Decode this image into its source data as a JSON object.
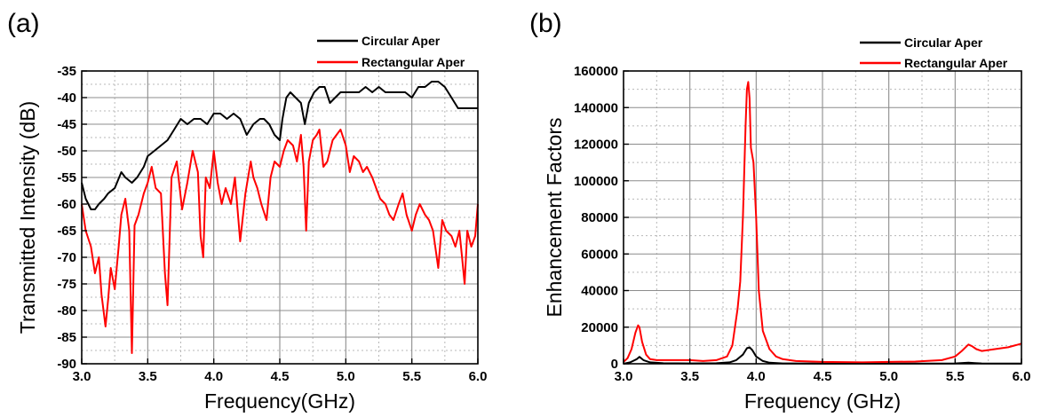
{
  "chart_data": [
    {
      "panel": "(a)",
      "type": "line",
      "xlabel": "Frequency(GHz)",
      "ylabel": "Transmitted Intensity (dB)",
      "xlim": [
        3.0,
        6.0
      ],
      "ylim": [
        -90,
        -35
      ],
      "xticks": [
        "3.0",
        "3.5",
        "4.0",
        "4.5",
        "5.0",
        "5.5",
        "6.0"
      ],
      "yticks": [
        "-35",
        "-40",
        "-45",
        "-50",
        "-55",
        "-60",
        "-65",
        "-70",
        "-75",
        "-80",
        "-85",
        "-90"
      ],
      "grid": true,
      "minor_grid": true,
      "legend_position": "top-right",
      "series": [
        {
          "name": "Circular Aper",
          "color": "#000000",
          "x": [
            3.0,
            3.03,
            3.07,
            3.1,
            3.13,
            3.17,
            3.2,
            3.25,
            3.3,
            3.33,
            3.38,
            3.42,
            3.47,
            3.5,
            3.55,
            3.6,
            3.65,
            3.7,
            3.75,
            3.8,
            3.85,
            3.9,
            3.95,
            4.0,
            4.05,
            4.1,
            4.15,
            4.2,
            4.25,
            4.3,
            4.35,
            4.38,
            4.42,
            4.46,
            4.5,
            4.52,
            4.55,
            4.58,
            4.62,
            4.66,
            4.69,
            4.72,
            4.76,
            4.8,
            4.84,
            4.88,
            4.92,
            4.96,
            5.0,
            5.05,
            5.1,
            5.15,
            5.2,
            5.25,
            5.3,
            5.35,
            5.4,
            5.45,
            5.5,
            5.55,
            5.6,
            5.65,
            5.7,
            5.75,
            5.8,
            5.85,
            5.9,
            5.95,
            6.0
          ],
          "y": [
            -56,
            -59,
            -61,
            -61,
            -60,
            -59,
            -58,
            -57,
            -54,
            -55,
            -56,
            -55,
            -53,
            -51,
            -50,
            -49,
            -48,
            -46,
            -44,
            -45,
            -44,
            -44,
            -45,
            -43,
            -43,
            -44,
            -43,
            -44,
            -47,
            -45,
            -44,
            -44,
            -45,
            -47,
            -48,
            -44,
            -40,
            -39,
            -40,
            -41,
            -45,
            -41,
            -39,
            -38,
            -38,
            -41,
            -40,
            -39,
            -39,
            -39,
            -39,
            -38,
            -39,
            -38,
            -39,
            -39,
            -39,
            -39,
            -40,
            -38,
            -38,
            -37,
            -37,
            -38,
            -40,
            -42,
            -42,
            -42,
            -42
          ]
        },
        {
          "name": "Rectangular Aper",
          "color": "#ff0000",
          "x": [
            3.0,
            3.03,
            3.07,
            3.1,
            3.13,
            3.15,
            3.18,
            3.2,
            3.22,
            3.25,
            3.28,
            3.3,
            3.33,
            3.36,
            3.38,
            3.4,
            3.43,
            3.47,
            3.5,
            3.53,
            3.56,
            3.6,
            3.63,
            3.65,
            3.68,
            3.72,
            3.76,
            3.8,
            3.84,
            3.88,
            3.9,
            3.92,
            3.94,
            3.97,
            4.0,
            4.03,
            4.06,
            4.09,
            4.13,
            4.16,
            4.2,
            4.24,
            4.28,
            4.3,
            4.33,
            4.36,
            4.4,
            4.43,
            4.46,
            4.5,
            4.53,
            4.56,
            4.6,
            4.63,
            4.66,
            4.68,
            4.7,
            4.72,
            4.75,
            4.78,
            4.8,
            4.83,
            4.86,
            4.9,
            4.93,
            4.96,
            5.0,
            5.03,
            5.06,
            5.1,
            5.13,
            5.16,
            5.2,
            5.23,
            5.26,
            5.3,
            5.33,
            5.36,
            5.4,
            5.43,
            5.46,
            5.5,
            5.53,
            5.56,
            5.6,
            5.63,
            5.66,
            5.7,
            5.73,
            5.76,
            5.8,
            5.83,
            5.86,
            5.88,
            5.9,
            5.92,
            5.95,
            5.98,
            6.0
          ],
          "y": [
            -60,
            -65,
            -68,
            -73,
            -70,
            -77,
            -83,
            -78,
            -72,
            -76,
            -68,
            -62,
            -59,
            -65,
            -88,
            -64,
            -62,
            -58,
            -56,
            -53,
            -57,
            -58,
            -73,
            -79,
            -55,
            -52,
            -61,
            -56,
            -50,
            -54,
            -66,
            -70,
            -55,
            -57,
            -50,
            -56,
            -60,
            -57,
            -60,
            -55,
            -67,
            -58,
            -52,
            -55,
            -57,
            -60,
            -63,
            -55,
            -52,
            -53,
            -50,
            -48,
            -49,
            -52,
            -47,
            -53,
            -65,
            -52,
            -48,
            -47,
            -46,
            -53,
            -52,
            -48,
            -47,
            -46,
            -49,
            -54,
            -51,
            -52,
            -54,
            -53,
            -55,
            -57,
            -59,
            -60,
            -62,
            -63,
            -60,
            -58,
            -62,
            -65,
            -62,
            -60,
            -62,
            -63,
            -65,
            -72,
            -63,
            -65,
            -66,
            -68,
            -65,
            -70,
            -75,
            -65,
            -68,
            -66,
            -60
          ]
        }
      ]
    },
    {
      "panel": "(b)",
      "type": "line",
      "xlabel": "Frequency (GHz)",
      "ylabel": "Enhancement Factors",
      "xlim": [
        3.0,
        6.0
      ],
      "ylim": [
        0,
        160000
      ],
      "xticks": [
        "3.0",
        "3.5",
        "4.0",
        "4.5",
        "5.0",
        "5.5",
        "6.0"
      ],
      "yticks": [
        "0",
        "20000",
        "40000",
        "60000",
        "80000",
        "100000",
        "120000",
        "140000",
        "160000"
      ],
      "grid": true,
      "minor_grid": true,
      "legend_position": "top-right",
      "series": [
        {
          "name": "Circular Aper",
          "color": "#000000",
          "x": [
            3.0,
            3.05,
            3.1,
            3.12,
            3.15,
            3.2,
            3.3,
            3.5,
            3.7,
            3.8,
            3.85,
            3.9,
            3.93,
            3.95,
            3.97,
            4.0,
            4.05,
            4.1,
            4.2,
            4.5,
            5.0,
            5.5,
            5.6,
            5.65,
            5.7,
            6.0
          ],
          "y": [
            0,
            800,
            2500,
            3800,
            2000,
            800,
            300,
            200,
            300,
            800,
            2000,
            5000,
            8500,
            9000,
            7500,
            4000,
            1500,
            600,
            200,
            100,
            100,
            200,
            600,
            400,
            200,
            100
          ]
        },
        {
          "name": "Rectangular Aper",
          "color": "#ff0000",
          "x": [
            3.0,
            3.03,
            3.06,
            3.09,
            3.11,
            3.12,
            3.14,
            3.17,
            3.2,
            3.25,
            3.3,
            3.4,
            3.5,
            3.6,
            3.7,
            3.78,
            3.82,
            3.86,
            3.88,
            3.9,
            3.92,
            3.93,
            3.94,
            3.95,
            3.96,
            3.98,
            4.0,
            4.02,
            4.05,
            4.1,
            4.15,
            4.2,
            4.3,
            4.5,
            4.8,
            5.0,
            5.2,
            5.4,
            5.5,
            5.55,
            5.6,
            5.63,
            5.66,
            5.7,
            5.8,
            5.9,
            6.0
          ],
          "y": [
            1000,
            3000,
            8000,
            17000,
            21000,
            20000,
            12000,
            5000,
            2500,
            2000,
            2000,
            2000,
            2000,
            1500,
            2000,
            4000,
            10000,
            30000,
            45000,
            80000,
            130000,
            150000,
            154000,
            145000,
            118000,
            110000,
            80000,
            40000,
            18000,
            8000,
            4000,
            2500,
            1500,
            1000,
            800,
            1000,
            1200,
            2000,
            4000,
            7000,
            10500,
            9500,
            8000,
            7000,
            8000,
            9000,
            11000
          ]
        }
      ]
    }
  ]
}
